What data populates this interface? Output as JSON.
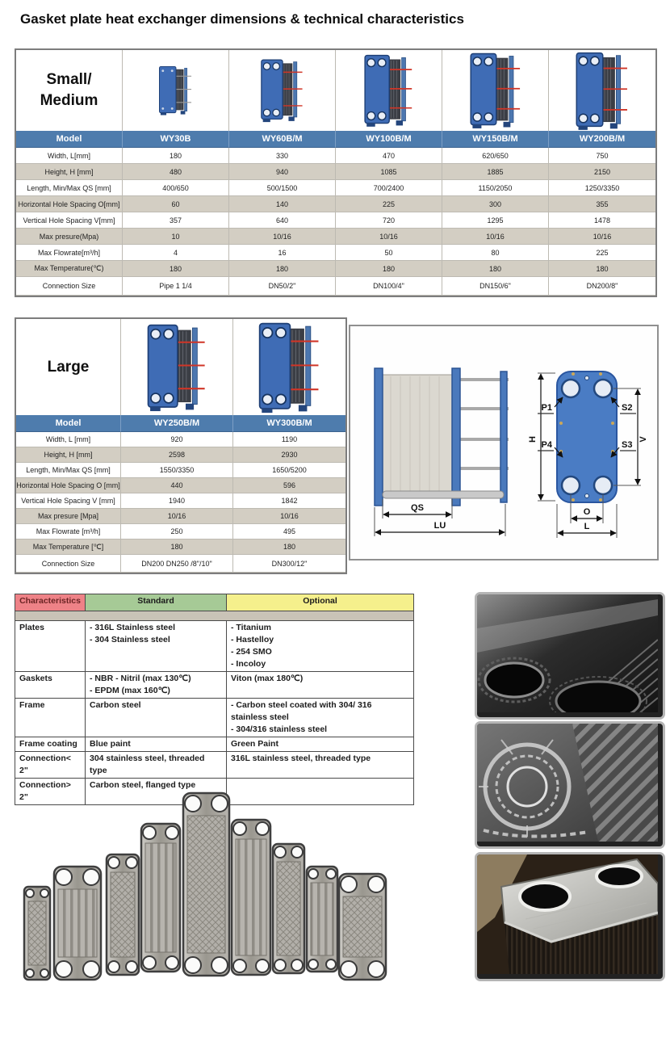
{
  "title": "Gasket plate heat exchanger dimensions & technical characteristics",
  "tables": {
    "small_medium": {
      "size_label": "Small/\nMedium",
      "header_label": "Model",
      "models": [
        "WY30B",
        "WY60B/M",
        "WY100B/M",
        "WY150B/M",
        "WY200B/M"
      ],
      "rows": [
        {
          "label": "Width, L[mm]",
          "values": [
            "180",
            "330",
            "470",
            "620/650",
            "750"
          ]
        },
        {
          "label": "Height, H [mm]",
          "values": [
            "480",
            "940",
            "1085",
            "1885",
            "2150"
          ]
        },
        {
          "label": "Length, Min/Max QS [mm]",
          "values": [
            "400/650",
            "500/1500",
            "700/2400",
            "1150/2050",
            "1250/3350"
          ]
        },
        {
          "label": "Horizontal Hole Spacing O[mm]",
          "values": [
            "60",
            "140",
            "225",
            "300",
            "355"
          ]
        },
        {
          "label": "Vertical Hole Spacing V[mm]",
          "values": [
            "357",
            "640",
            "720",
            "1295",
            "1478"
          ]
        },
        {
          "label": "Max presure(Mpa)",
          "values": [
            "10",
            "10/16",
            "10/16",
            "10/16",
            "10/16"
          ]
        },
        {
          "label": "Max Flowrate[m³/h]",
          "values": [
            "4",
            "16",
            "50",
            "80",
            "225"
          ]
        },
        {
          "label": "Max Temperature(℃)",
          "values": [
            "180",
            "180",
            "180",
            "180",
            "180"
          ]
        },
        {
          "label": "Connection Size",
          "values": [
            "Pipe 1 1/4",
            "DN50/2\"",
            "DN100/4\"",
            "DN150/6\"",
            "DN200/8\""
          ]
        }
      ]
    },
    "large": {
      "size_label": "Large",
      "header_label": "Model",
      "models": [
        "WY250B/M",
        "WY300B/M"
      ],
      "rows": [
        {
          "label": "Width, L [mm]",
          "values": [
            "920",
            "1190"
          ]
        },
        {
          "label": "Height, H [mm]",
          "values": [
            "2598",
            "2930"
          ]
        },
        {
          "label": "Length, Min/Max QS [mm]",
          "values": [
            "1550/3350",
            "1650/5200"
          ]
        },
        {
          "label": "Horizontal Hole Spacing O [mm]",
          "values": [
            "440",
            "596"
          ]
        },
        {
          "label": "Vertical Hole Spacing V [mm]",
          "values": [
            "1940",
            "1842"
          ]
        },
        {
          "label": "Max presure [Mpa]",
          "values": [
            "10/16",
            "10/16"
          ]
        },
        {
          "label": "Max Flowrate [m³/h]",
          "values": [
            "250",
            "495"
          ]
        },
        {
          "label": "Max Temperature [℃]",
          "values": [
            "180",
            "180"
          ]
        },
        {
          "label": "Connection Size",
          "values": [
            "DN200 DN250 /8\"/10\"",
            "DN300/12\""
          ]
        }
      ]
    }
  },
  "diagram": {
    "labels": {
      "qs": "QS",
      "lu": "LU",
      "h": "H",
      "v": "V",
      "o": "O",
      "l": "L",
      "p1": "P1",
      "p4": "P4",
      "s2": "S2",
      "s3": "S3"
    }
  },
  "characteristics": {
    "headers": [
      {
        "label": "Characteristics",
        "color": "#ee8287"
      },
      {
        "label": "Standard",
        "color": "#a6ca96"
      },
      {
        "label": "Optional",
        "color": "#f5f08c"
      }
    ],
    "rows": [
      {
        "name": "Plates",
        "standard": [
          "- 316L Stainless steel",
          "- 304  Stainless  steel"
        ],
        "optional": [
          "- Titanium",
          "- Hastelloy",
          "- 254 SMO",
          "- Incoloy"
        ]
      },
      {
        "name": "Gaskets",
        "standard": [
          "- NBR - Nitril (max 130℃)",
          "- EPDM (max 160℃)"
        ],
        "optional": [
          "Viton (max 180℃)"
        ]
      },
      {
        "name": "Frame",
        "standard": [
          "Carbon steel"
        ],
        "optional": [
          "- Carbon steel coated with 304/ 316 stainless steel",
          "- 304/316 stainless steel"
        ]
      },
      {
        "name": "Frame coating",
        "standard": [
          "Blue paint"
        ],
        "optional": [
          "Green Paint"
        ]
      },
      {
        "name": "Connection< 2\"",
        "standard": [
          "304 stainless steel, threaded type"
        ],
        "optional": [
          "316L stainless steel, threaded type"
        ]
      },
      {
        "name": "Connection> 2\"",
        "standard": [
          "Carbon steel, flanged type"
        ],
        "optional": []
      }
    ]
  },
  "colors": {
    "model_header_blue": "#4e7cad",
    "row_beige": "#d3cec3",
    "char_red": "#ee8287",
    "char_green": "#a6ca96",
    "char_yellow": "#f5f08c",
    "char_gray": "#c9c3b7",
    "exchanger_blue": "#3f6cb5",
    "tie_rod_red": "#d03527",
    "diagram_blue": "#4a7cc4"
  }
}
